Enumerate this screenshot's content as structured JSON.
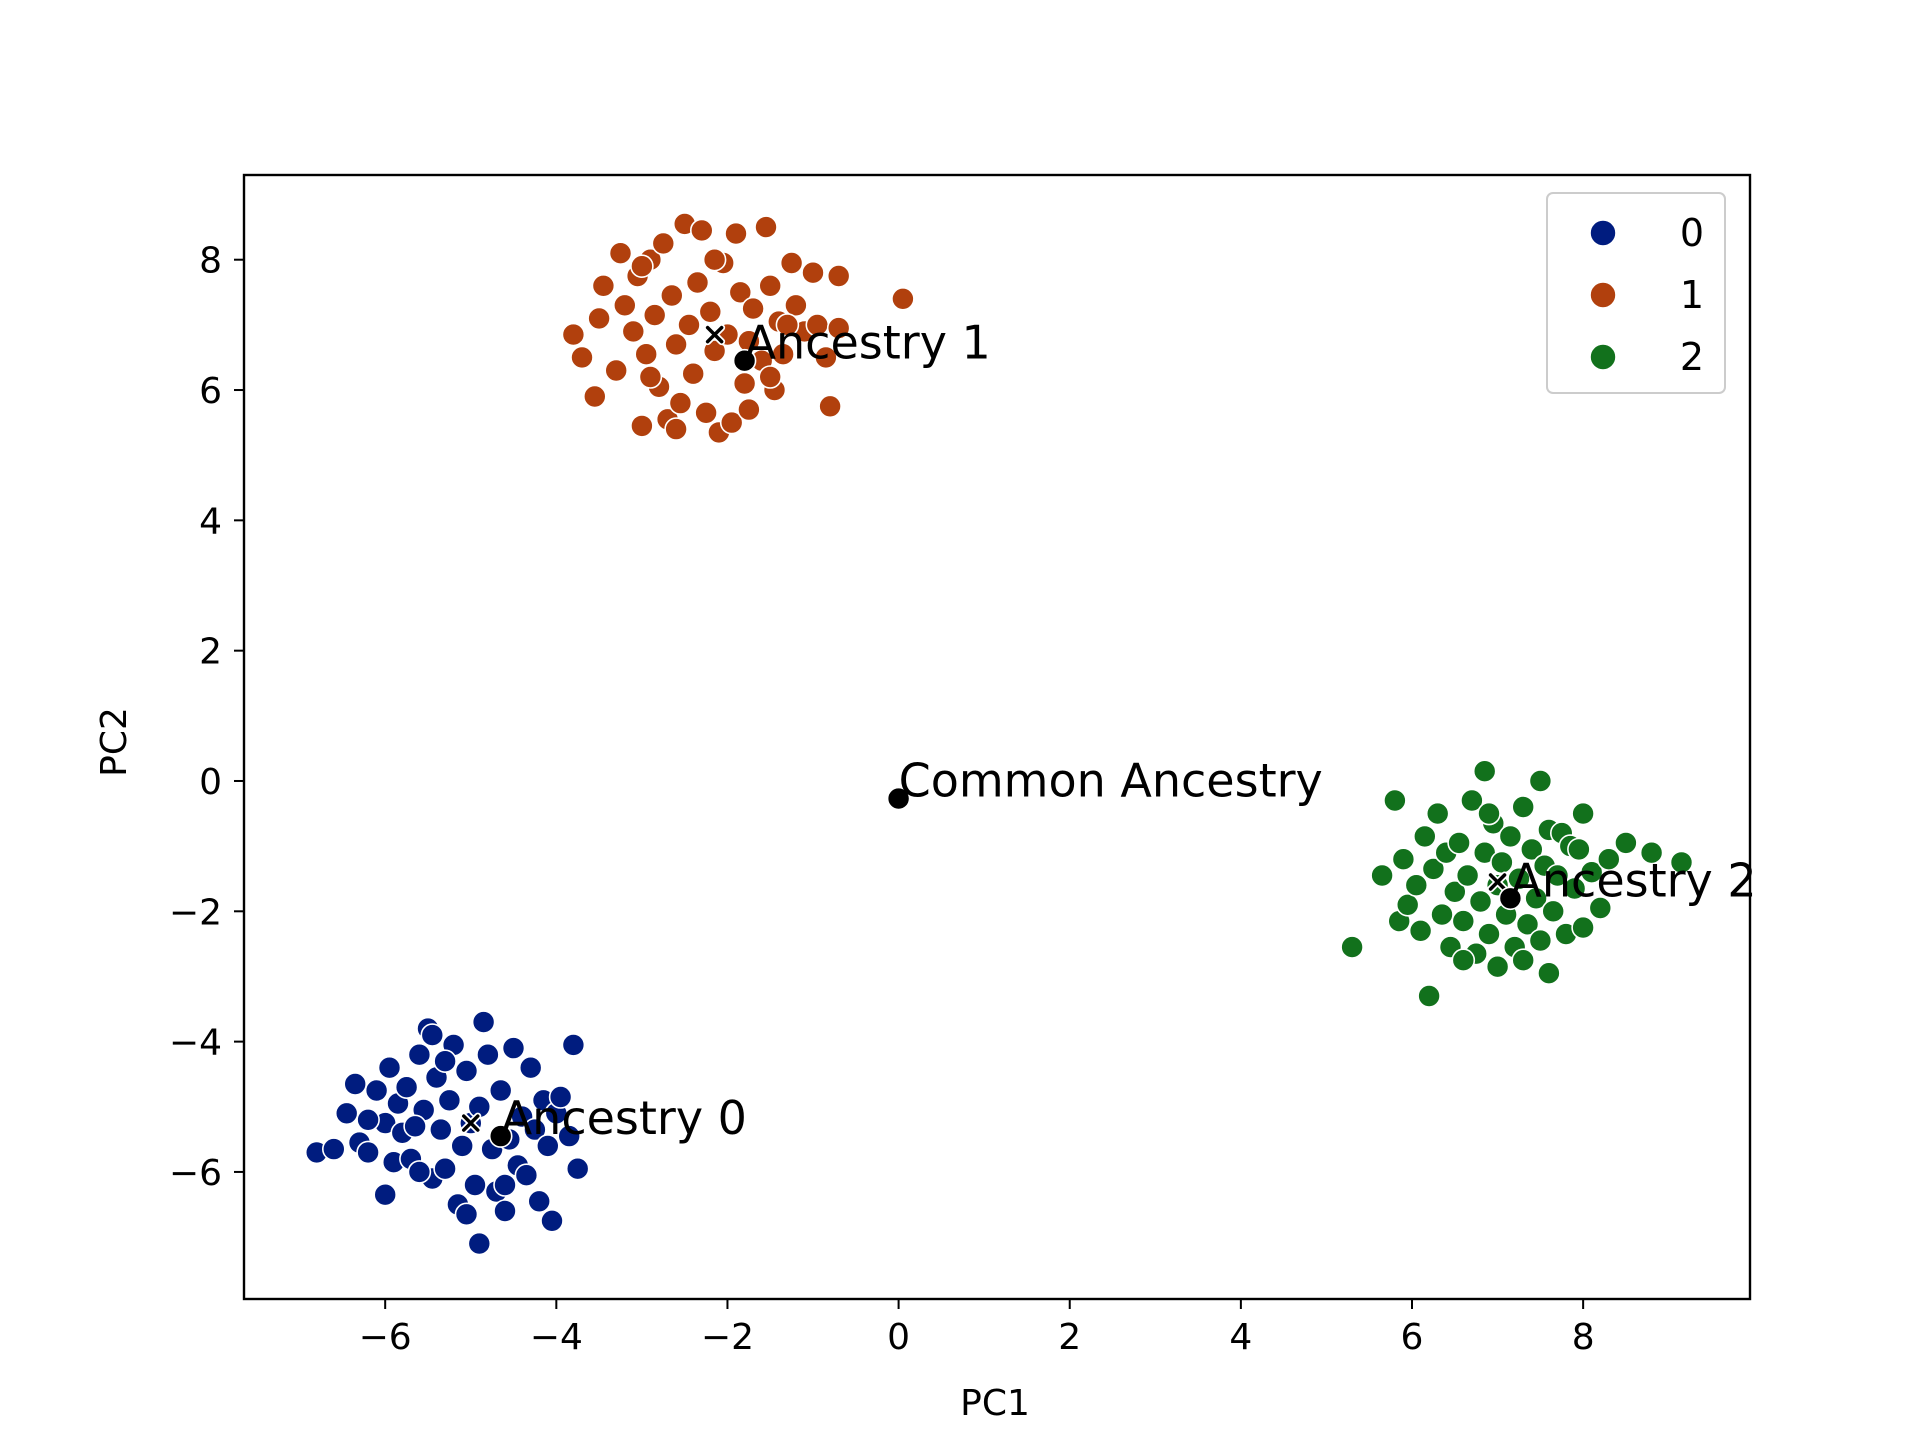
{
  "chart_data": {
    "type": "scatter",
    "xlabel": "PC1",
    "ylabel": "PC2",
    "xlim": [
      -7.65,
      9.95
    ],
    "ylim": [
      -7.95,
      9.3
    ],
    "x_ticks": [
      -6,
      -4,
      -2,
      0,
      2,
      4,
      6,
      8
    ],
    "y_ticks": [
      -6,
      -4,
      -2,
      0,
      2,
      4,
      6,
      8
    ],
    "grid": false,
    "legend_position": "top-right",
    "legend": [
      {
        "label": "0",
        "color": "#001c7f"
      },
      {
        "label": "1",
        "color": "#b1400d"
      },
      {
        "label": "2",
        "color": "#12711c"
      }
    ],
    "series": [
      {
        "name": "0",
        "color": "#001c7f",
        "points": [
          [
            -6.8,
            -5.7
          ],
          [
            -6.6,
            -5.65
          ],
          [
            -6.45,
            -5.1
          ],
          [
            -6.35,
            -4.65
          ],
          [
            -6.3,
            -5.55
          ],
          [
            -6.2,
            -5.7
          ],
          [
            -6.1,
            -4.75
          ],
          [
            -6.0,
            -5.25
          ],
          [
            -5.95,
            -4.4
          ],
          [
            -5.9,
            -5.85
          ],
          [
            -5.85,
            -4.95
          ],
          [
            -5.8,
            -5.4
          ],
          [
            -5.75,
            -4.7
          ],
          [
            -5.7,
            -5.8
          ],
          [
            -5.6,
            -4.2
          ],
          [
            -5.55,
            -5.05
          ],
          [
            -5.5,
            -3.8
          ],
          [
            -5.45,
            -6.1
          ],
          [
            -5.4,
            -4.55
          ],
          [
            -5.35,
            -5.35
          ],
          [
            -5.3,
            -5.95
          ],
          [
            -5.25,
            -4.9
          ],
          [
            -5.2,
            -4.05
          ],
          [
            -5.15,
            -6.5
          ],
          [
            -5.1,
            -5.6
          ],
          [
            -5.05,
            -4.45
          ],
          [
            -5.0,
            -5.25
          ],
          [
            -4.95,
            -6.2
          ],
          [
            -4.9,
            -7.1
          ],
          [
            -4.9,
            -5.0
          ],
          [
            -4.85,
            -3.7
          ],
          [
            -4.8,
            -4.2
          ],
          [
            -4.75,
            -5.65
          ],
          [
            -4.7,
            -6.3
          ],
          [
            -4.65,
            -4.75
          ],
          [
            -4.6,
            -6.6
          ],
          [
            -4.55,
            -5.5
          ],
          [
            -4.5,
            -4.1
          ],
          [
            -4.45,
            -5.9
          ],
          [
            -4.4,
            -5.15
          ],
          [
            -4.35,
            -6.05
          ],
          [
            -4.3,
            -4.4
          ],
          [
            -4.25,
            -5.35
          ],
          [
            -4.2,
            -6.45
          ],
          [
            -4.15,
            -4.9
          ],
          [
            -4.1,
            -5.6
          ],
          [
            -4.05,
            -6.75
          ],
          [
            -4.0,
            -5.1
          ],
          [
            -3.95,
            -4.85
          ],
          [
            -3.85,
            -5.45
          ],
          [
            -3.8,
            -4.05
          ],
          [
            -3.75,
            -5.95
          ],
          [
            -6.0,
            -6.35
          ],
          [
            -5.65,
            -5.3
          ],
          [
            -5.3,
            -4.3
          ],
          [
            -5.6,
            -6.0
          ],
          [
            -6.2,
            -5.2
          ],
          [
            -4.6,
            -6.2
          ],
          [
            -5.05,
            -6.65
          ],
          [
            -5.45,
            -3.9
          ]
        ]
      },
      {
        "name": "1",
        "color": "#b1400d",
        "points": [
          [
            -3.8,
            6.85
          ],
          [
            -3.7,
            6.5
          ],
          [
            -3.55,
            5.9
          ],
          [
            -3.5,
            7.1
          ],
          [
            -3.45,
            7.6
          ],
          [
            -3.3,
            6.3
          ],
          [
            -3.25,
            8.1
          ],
          [
            -3.2,
            7.3
          ],
          [
            -3.1,
            6.9
          ],
          [
            -3.05,
            7.75
          ],
          [
            -3.0,
            5.45
          ],
          [
            -2.95,
            6.55
          ],
          [
            -2.9,
            8.0
          ],
          [
            -2.85,
            7.15
          ],
          [
            -2.8,
            6.05
          ],
          [
            -2.75,
            8.25
          ],
          [
            -2.7,
            5.55
          ],
          [
            -2.65,
            7.45
          ],
          [
            -2.6,
            6.7
          ],
          [
            -2.55,
            5.8
          ],
          [
            -2.5,
            8.55
          ],
          [
            -2.45,
            7.0
          ],
          [
            -2.4,
            6.25
          ],
          [
            -2.35,
            7.65
          ],
          [
            -2.3,
            8.45
          ],
          [
            -2.25,
            5.65
          ],
          [
            -2.2,
            7.2
          ],
          [
            -2.15,
            6.6
          ],
          [
            -2.1,
            5.35
          ],
          [
            -2.05,
            7.95
          ],
          [
            -2.0,
            6.85
          ],
          [
            -1.95,
            5.5
          ],
          [
            -1.9,
            8.4
          ],
          [
            -1.85,
            7.5
          ],
          [
            -1.8,
            6.1
          ],
          [
            -1.75,
            6.75
          ],
          [
            -1.7,
            7.25
          ],
          [
            -1.6,
            6.45
          ],
          [
            -1.55,
            8.5
          ],
          [
            -1.5,
            7.6
          ],
          [
            -1.45,
            6.0
          ],
          [
            -1.4,
            7.05
          ],
          [
            -1.35,
            6.55
          ],
          [
            -1.25,
            7.95
          ],
          [
            -1.2,
            7.3
          ],
          [
            -1.1,
            6.9
          ],
          [
            -1.0,
            7.8
          ],
          [
            -0.95,
            7.0
          ],
          [
            -0.85,
            6.5
          ],
          [
            -0.8,
            5.75
          ],
          [
            -0.7,
            7.75
          ],
          [
            -0.7,
            6.95
          ],
          [
            0.05,
            7.4
          ],
          [
            -2.6,
            5.4
          ],
          [
            -1.5,
            6.2
          ],
          [
            -2.9,
            6.2
          ],
          [
            -1.75,
            5.7
          ],
          [
            -2.15,
            8.0
          ],
          [
            -3.0,
            7.9
          ],
          [
            -1.3,
            7.0
          ]
        ]
      },
      {
        "name": "2",
        "color": "#12711c",
        "points": [
          [
            5.3,
            -2.55
          ],
          [
            5.65,
            -1.45
          ],
          [
            5.8,
            -0.3
          ],
          [
            5.85,
            -2.15
          ],
          [
            5.9,
            -1.2
          ],
          [
            5.95,
            -1.9
          ],
          [
            6.05,
            -1.6
          ],
          [
            6.1,
            -2.3
          ],
          [
            6.15,
            -0.85
          ],
          [
            6.2,
            -3.3
          ],
          [
            6.25,
            -1.35
          ],
          [
            6.3,
            -0.5
          ],
          [
            6.35,
            -2.05
          ],
          [
            6.4,
            -1.1
          ],
          [
            6.45,
            -2.55
          ],
          [
            6.5,
            -1.7
          ],
          [
            6.55,
            -0.95
          ],
          [
            6.6,
            -2.15
          ],
          [
            6.65,
            -1.45
          ],
          [
            6.7,
            -0.3
          ],
          [
            6.75,
            -2.65
          ],
          [
            6.8,
            -1.85
          ],
          [
            6.85,
            0.15
          ],
          [
            6.85,
            -1.1
          ],
          [
            6.9,
            -2.35
          ],
          [
            6.95,
            -0.65
          ],
          [
            7.0,
            -1.6
          ],
          [
            7.0,
            -2.85
          ],
          [
            7.05,
            -1.25
          ],
          [
            7.1,
            -2.05
          ],
          [
            7.15,
            -0.85
          ],
          [
            7.2,
            -2.55
          ],
          [
            7.25,
            -1.5
          ],
          [
            7.3,
            -0.4
          ],
          [
            7.35,
            -2.2
          ],
          [
            7.4,
            -1.05
          ],
          [
            7.45,
            -1.8
          ],
          [
            7.5,
            0.0
          ],
          [
            7.5,
            -2.45
          ],
          [
            7.55,
            -1.3
          ],
          [
            7.6,
            -0.75
          ],
          [
            7.6,
            -2.95
          ],
          [
            7.65,
            -2.0
          ],
          [
            7.7,
            -1.45
          ],
          [
            7.75,
            -0.8
          ],
          [
            7.8,
            -2.35
          ],
          [
            7.85,
            -1.0
          ],
          [
            7.9,
            -1.65
          ],
          [
            8.0,
            -2.25
          ],
          [
            8.0,
            -0.5
          ],
          [
            8.1,
            -1.4
          ],
          [
            8.2,
            -1.95
          ],
          [
            8.3,
            -1.2
          ],
          [
            8.5,
            -0.95
          ],
          [
            8.8,
            -1.1
          ],
          [
            9.15,
            -1.25
          ],
          [
            6.6,
            -2.75
          ],
          [
            6.9,
            -0.5
          ],
          [
            7.95,
            -1.05
          ],
          [
            7.3,
            -2.75
          ]
        ]
      }
    ],
    "centroids": [
      {
        "name": "0",
        "x": -5.0,
        "y": -5.25,
        "marker": "x"
      },
      {
        "name": "1",
        "x": -2.15,
        "y": 6.85,
        "marker": "x"
      },
      {
        "name": "2",
        "x": 7.0,
        "y": -1.55,
        "marker": "x"
      }
    ],
    "annotations": [
      {
        "text": "Ancestry 0",
        "x": -4.65,
        "y": -5.45
      },
      {
        "text": "Ancestry 1",
        "x": -1.8,
        "y": 6.45
      },
      {
        "text": "Ancestry 2",
        "x": 7.15,
        "y": -1.8
      },
      {
        "text": "Common Ancestry",
        "x": 0.0,
        "y": -0.27
      }
    ]
  }
}
